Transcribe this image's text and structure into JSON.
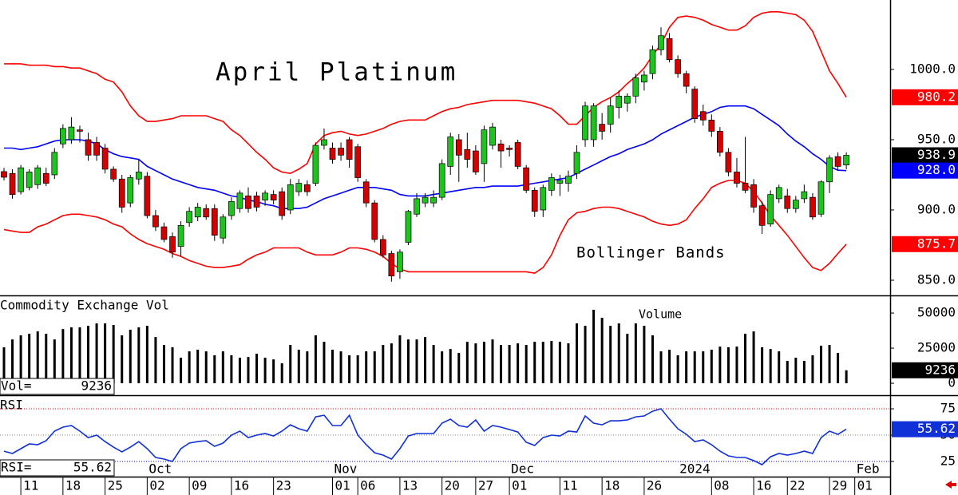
{
  "chart_data": [
    {
      "type": "candlestick",
      "title": "April Platinum",
      "annotation": "Bollinger Bands",
      "up_color": "#1ec31e",
      "down_color": "#d40000",
      "wick_color": "#000000",
      "last_close_color": "#000000",
      "band_color": "#ff0000",
      "middle_color": "#0000ff",
      "xlim": [
        -0.474,
        105.2
      ],
      "ylim": [
        839.2,
        1049.4
      ],
      "yticks": [
        {
          "value": 1000,
          "label": "1000.0"
        },
        {
          "value": 950,
          "label": "950.0"
        },
        {
          "value": 900,
          "label": "900.0"
        },
        {
          "value": 850,
          "label": "850.0"
        }
      ],
      "ohlc": [
        [
          927.3,
          930,
          921,
          923.3
        ],
        [
          926,
          929,
          908,
          911
        ],
        [
          913,
          932,
          911,
          930
        ],
        [
          916,
          929,
          914,
          927
        ],
        [
          918,
          932,
          915,
          930
        ],
        [
          926,
          930,
          917,
          919
        ],
        [
          925,
          944,
          922,
          941
        ],
        [
          947,
          961,
          944,
          958
        ],
        [
          950,
          966,
          947,
          959
        ],
        [
          957,
          960,
          948,
          956
        ],
        [
          950,
          955,
          935,
          939
        ],
        [
          948,
          952,
          935,
          939
        ],
        [
          944,
          947,
          926,
          929
        ],
        [
          929,
          931,
          920,
          922
        ],
        [
          922,
          925,
          898,
          902
        ],
        [
          905,
          925,
          902,
          923
        ],
        [
          922,
          936,
          918,
          927
        ],
        [
          924,
          927,
          894,
          896
        ],
        [
          896,
          900,
          885,
          888
        ],
        [
          888,
          891,
          877,
          879
        ],
        [
          881,
          884,
          866,
          870
        ],
        [
          874,
          892,
          867,
          889
        ],
        [
          891,
          902,
          888,
          899
        ],
        [
          895,
          905,
          892,
          902
        ],
        [
          901,
          904,
          893,
          895
        ],
        [
          901,
          904,
          878,
          882
        ],
        [
          880,
          897,
          876,
          895
        ],
        [
          896,
          909,
          893,
          906
        ],
        [
          901,
          914,
          898,
          912
        ],
        [
          910,
          916,
          898,
          901
        ],
        [
          910,
          913,
          899,
          902
        ],
        [
          907,
          914,
          903,
          912
        ],
        [
          911,
          914,
          904,
          907
        ],
        [
          913,
          916,
          893,
          896
        ],
        [
          900,
          922,
          897,
          918
        ],
        [
          913,
          922,
          910,
          919
        ],
        [
          918,
          921,
          910,
          913
        ],
        [
          919,
          948,
          917,
          946
        ],
        [
          946,
          958,
          943,
          950
        ],
        [
          944,
          948,
          933,
          936
        ],
        [
          944,
          948,
          935,
          939
        ],
        [
          950,
          952,
          930,
          936
        ],
        [
          945,
          947,
          920,
          923
        ],
        [
          920,
          922,
          902,
          905
        ],
        [
          905,
          907,
          877,
          879
        ],
        [
          879,
          882,
          866,
          868
        ],
        [
          869,
          871,
          849,
          853
        ],
        [
          856,
          872,
          851,
          870
        ],
        [
          877,
          900,
          875,
          899
        ],
        [
          897,
          912,
          895,
          908
        ],
        [
          905,
          912,
          902,
          909
        ],
        [
          905,
          914,
          902,
          909
        ],
        [
          909,
          936,
          907,
          933
        ],
        [
          931,
          955,
          925,
          952
        ],
        [
          950,
          954,
          920,
          939
        ],
        [
          943,
          955,
          930,
          936
        ],
        [
          942,
          946,
          925,
          927
        ],
        [
          933,
          960,
          920,
          957
        ],
        [
          946,
          962,
          943,
          959
        ],
        [
          947,
          950,
          930,
          942
        ],
        [
          944,
          946,
          938,
          943
        ],
        [
          948,
          950,
          929,
          931
        ],
        [
          930,
          932,
          912,
          914
        ],
        [
          914,
          916,
          895,
          899
        ],
        [
          900,
          918,
          895,
          916
        ],
        [
          914,
          926,
          910,
          923
        ],
        [
          919,
          925,
          910,
          921
        ],
        [
          919,
          928,
          913,
          924
        ],
        [
          926,
          946,
          922,
          941
        ],
        [
          950,
          977,
          945,
          974
        ],
        [
          950,
          976,
          945,
          974
        ],
        [
          961,
          969,
          950,
          956
        ],
        [
          961,
          980,
          955,
          974
        ],
        [
          973,
          985,
          965,
          981
        ],
        [
          976,
          983,
          970,
          981
        ],
        [
          981,
          997,
          976,
          994
        ],
        [
          991,
          999,
          985,
          996
        ],
        [
          997,
          1017,
          993,
          1014
        ],
        [
          1014,
          1030,
          1010,
          1024
        ],
        [
          1022,
          1026,
          1005,
          1007
        ],
        [
          1007,
          1010,
          994,
          997
        ],
        [
          997,
          999,
          983,
          988
        ],
        [
          986,
          988,
          962,
          965
        ],
        [
          970,
          975,
          960,
          964
        ],
        [
          964,
          968,
          952,
          956
        ],
        [
          956,
          959,
          938,
          941
        ],
        [
          941,
          944,
          924,
          927
        ],
        [
          927,
          937,
          916,
          919
        ],
        [
          919,
          952,
          912,
          914
        ],
        [
          918,
          922,
          898,
          902
        ],
        [
          903,
          906,
          883,
          889
        ],
        [
          890,
          914,
          888,
          911
        ],
        [
          908,
          918,
          905,
          916
        ],
        [
          910,
          915,
          898,
          901
        ],
        [
          901,
          910,
          898,
          907
        ],
        [
          908,
          918,
          905,
          913
        ],
        [
          909,
          912,
          893,
          895
        ],
        [
          897,
          921,
          895,
          920
        ],
        [
          920,
          939,
          912,
          937
        ],
        [
          938,
          941,
          928,
          931
        ],
        [
          932,
          941,
          929,
          938.9
        ]
      ],
      "bands": {
        "upper": [
          1004,
          1004,
          1004,
          1003,
          1003,
          1003,
          1002,
          1002,
          1001,
          1001,
          999,
          997,
          993,
          991,
          984,
          974,
          967,
          963,
          963,
          964,
          965,
          967,
          967,
          967,
          967,
          965,
          963,
          957,
          953,
          947,
          941,
          936,
          930,
          927,
          926,
          929,
          933,
          947,
          953,
          955,
          956,
          954,
          953,
          954,
          956,
          958,
          961,
          963,
          964,
          964,
          964,
          967,
          970,
          972,
          973,
          975,
          976,
          977,
          978,
          978,
          978,
          978,
          977,
          976,
          974,
          972,
          967,
          961,
          961,
          967,
          973,
          977,
          980,
          984,
          990,
          995,
          1001,
          1010,
          1018,
          1030,
          1037,
          1038,
          1037,
          1035,
          1032,
          1030,
          1028,
          1028,
          1031,
          1037,
          1040,
          1041,
          1041,
          1040,
          1039,
          1035,
          1027,
          1013,
          999,
          990,
          980.2
        ],
        "middle": [
          944,
          944,
          943,
          944,
          945,
          947,
          949,
          950,
          950,
          950,
          949,
          947,
          943,
          940,
          938,
          937,
          936,
          931,
          928,
          925,
          922,
          920,
          918,
          916,
          915,
          914,
          912,
          910,
          909,
          907,
          906,
          904,
          903,
          901,
          901,
          901,
          902,
          905,
          908,
          910,
          912,
          914,
          916,
          916,
          916,
          915,
          914,
          911,
          910,
          910,
          910,
          911,
          912,
          913,
          914,
          915,
          916,
          916,
          917,
          917,
          917,
          917,
          918,
          919,
          920,
          921,
          922,
          923,
          926,
          929,
          932,
          935,
          938,
          940,
          943,
          945,
          947,
          950,
          954,
          957,
          960,
          963,
          966,
          968,
          970,
          973,
          974,
          974,
          974,
          972,
          968,
          964,
          960,
          954,
          949,
          945,
          940,
          936,
          931,
          928.3,
          928.0
        ],
        "middle_label": "928.0",
        "lower": [
          886,
          885,
          884,
          884,
          888,
          890,
          893,
          896,
          897,
          897,
          896,
          895,
          893,
          890,
          888,
          883,
          879,
          876,
          874,
          872,
          869,
          867,
          864,
          862,
          860,
          859,
          859,
          860,
          861,
          865,
          868,
          870,
          873,
          873,
          873,
          873,
          870,
          868,
          868,
          868,
          870,
          873,
          873,
          872,
          870,
          867,
          862,
          858,
          856,
          856,
          856,
          856,
          856,
          856,
          856,
          856,
          856,
          856,
          856,
          856,
          856,
          856,
          856,
          855,
          859,
          868,
          882,
          893,
          898,
          899,
          901,
          902,
          902,
          901,
          899,
          897,
          895,
          892,
          890,
          889,
          890,
          893,
          901,
          908,
          916,
          919,
          921,
          921,
          919,
          913,
          905,
          896,
          889,
          882,
          874,
          866,
          859,
          857,
          862,
          869,
          875.7
        ]
      }
    },
    {
      "type": "bar",
      "title": "Commodity Exchange Vol",
      "annotation": "Volume",
      "readout_label": "Vol=",
      "color": "#000000",
      "marker_color": "#000000",
      "xlim": [
        -0.474,
        105.2
      ],
      "ylim": [
        -8500,
        61400
      ],
      "yticks": [
        50000,
        25000,
        0
      ],
      "values": [
        25600,
        31200,
        34100,
        35200,
        36900,
        35200,
        31200,
        38600,
        39800,
        39800,
        40900,
        42600,
        42600,
        41500,
        34100,
        38100,
        39800,
        40900,
        32900,
        27300,
        25600,
        18200,
        22700,
        23900,
        22700,
        19900,
        22700,
        19900,
        18200,
        18700,
        21000,
        18200,
        17000,
        14200,
        27300,
        23900,
        22700,
        34100,
        29500,
        23900,
        22700,
        19900,
        19900,
        22700,
        22700,
        27300,
        28400,
        34100,
        31200,
        31200,
        32900,
        27300,
        22700,
        24400,
        21600,
        29500,
        28400,
        29500,
        31200,
        27300,
        27300,
        28400,
        27300,
        29500,
        29500,
        30100,
        29500,
        28400,
        42600,
        40900,
        52300,
        46600,
        40900,
        42600,
        35200,
        42600,
        40900,
        34100,
        22700,
        23900,
        19900,
        22700,
        22700,
        22700,
        23900,
        26100,
        25600,
        26100,
        35200,
        36900,
        25600,
        24400,
        22700,
        15900,
        18200,
        15900,
        19900,
        26700,
        27300,
        21600,
        9236
      ]
    },
    {
      "type": "line",
      "title": "RSI",
      "readout_label": "RSI=",
      "color": "#1030d8",
      "marker_color": "#1030d8",
      "grid": true,
      "grid_colors": [
        "#ff0000",
        "#808080",
        "#0000ff"
      ],
      "xlim": [
        -0.474,
        105.2
      ],
      "ylim": [
        10.6,
        86.4
      ],
      "yticks": [
        75,
        50,
        25
      ],
      "values": [
        34.8,
        32.6,
        37.1,
        41.7,
        40.9,
        44.7,
        53.8,
        57.6,
        59.1,
        53.8,
        47.7,
        50,
        43.9,
        38.6,
        34.1,
        38.6,
        43.9,
        37.1,
        28.8,
        27.3,
        25,
        37.1,
        42.4,
        43.9,
        44.7,
        39.4,
        42.4,
        50,
        53.8,
        47.7,
        50,
        51.5,
        49.2,
        53.8,
        59.8,
        56.1,
        53.8,
        67.4,
        68.9,
        59.1,
        59.1,
        68.9,
        50,
        40.9,
        33.3,
        31.1,
        27.3,
        37.1,
        49.2,
        51.5,
        51.5,
        51.5,
        61.4,
        65.2,
        59.1,
        57.6,
        64.4,
        53.8,
        59.1,
        57.6,
        55.3,
        53,
        43.2,
        40.2,
        47.7,
        50,
        49.2,
        53.8,
        53,
        68.2,
        61.4,
        59.8,
        63.6,
        63.6,
        64.4,
        67.4,
        68.2,
        72.7,
        75,
        65.2,
        56.1,
        50.8,
        43.9,
        45.5,
        40.9,
        34.8,
        30.3,
        28.8,
        28.8,
        25.8,
        22,
        29.5,
        32.6,
        31.1,
        32.6,
        34.8,
        32.6,
        47.7,
        53.8,
        50.8,
        55.62
      ],
      "xticks": [
        {
          "value": 2,
          "label": "11"
        },
        {
          "value": 7,
          "label": "18"
        },
        {
          "value": 12,
          "label": "25"
        },
        {
          "value": 17,
          "label": "02"
        },
        {
          "value": 22,
          "label": "09"
        },
        {
          "value": 27,
          "label": "16"
        },
        {
          "value": 32,
          "label": "23"
        },
        {
          "value": 39,
          "label": "01"
        },
        {
          "value": 42,
          "label": "06"
        },
        {
          "value": 47,
          "label": "13"
        },
        {
          "value": 52,
          "label": "20"
        },
        {
          "value": 56,
          "label": "27"
        },
        {
          "value": 60,
          "label": "01"
        },
        {
          "value": 66,
          "label": "11"
        },
        {
          "value": 71,
          "label": "18"
        },
        {
          "value": 76,
          "label": "26"
        },
        {
          "value": 84,
          "label": "08"
        },
        {
          "value": 89,
          "label": "16"
        },
        {
          "value": 93,
          "label": "22"
        },
        {
          "value": 98,
          "label": "29"
        },
        {
          "value": 101,
          "label": "01"
        }
      ],
      "month_ticks": [
        {
          "value": 17,
          "label": "Oct"
        },
        {
          "value": 39,
          "label": "Nov"
        },
        {
          "value": 60,
          "label": "Dec"
        },
        {
          "value": 80,
          "label": "2024"
        },
        {
          "value": 101,
          "label": "Feb"
        }
      ]
    }
  ]
}
